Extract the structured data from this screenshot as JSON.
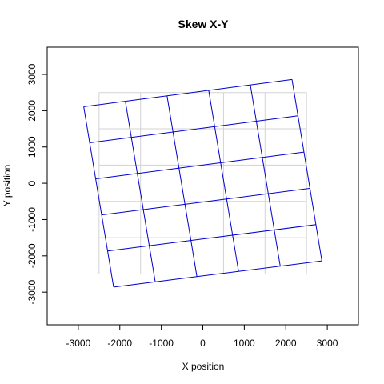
{
  "chart_data": {
    "type": "line",
    "title": "Skew X-Y",
    "xlabel": "X position",
    "ylabel": "Y position",
    "xlim": [
      -3750,
      3750
    ],
    "ylim": [
      -3900,
      3750
    ],
    "x_ticks": [
      -3000,
      -2000,
      -1000,
      0,
      1000,
      2000,
      3000
    ],
    "y_ticks": [
      -3000,
      -2000,
      -1000,
      0,
      1000,
      2000,
      3000
    ],
    "x_tick_labels": [
      "-3000",
      "-2000",
      "-1000",
      "0",
      "1000",
      "2000",
      "3000"
    ],
    "y_tick_labels": [
      "-3000",
      "-2000",
      "-1000",
      "0",
      "1000",
      "2000",
      "3000"
    ],
    "grid": true,
    "legend": "none",
    "series": [
      {
        "color": "#d3d3d3",
        "grid_positions": [
          -2500,
          -1500,
          -500,
          500,
          1500,
          2500
        ],
        "extent": [
          -2500,
          2500
        ]
      },
      {
        "color": "#0000cd",
        "corners": {
          "bottom_left": [
            -2150,
            -2860
          ],
          "bottom_right": [
            2870,
            -2140
          ],
          "top_left": [
            -2870,
            2110
          ],
          "top_right": [
            2150,
            2860
          ]
        },
        "divisions": 5
      }
    ]
  }
}
